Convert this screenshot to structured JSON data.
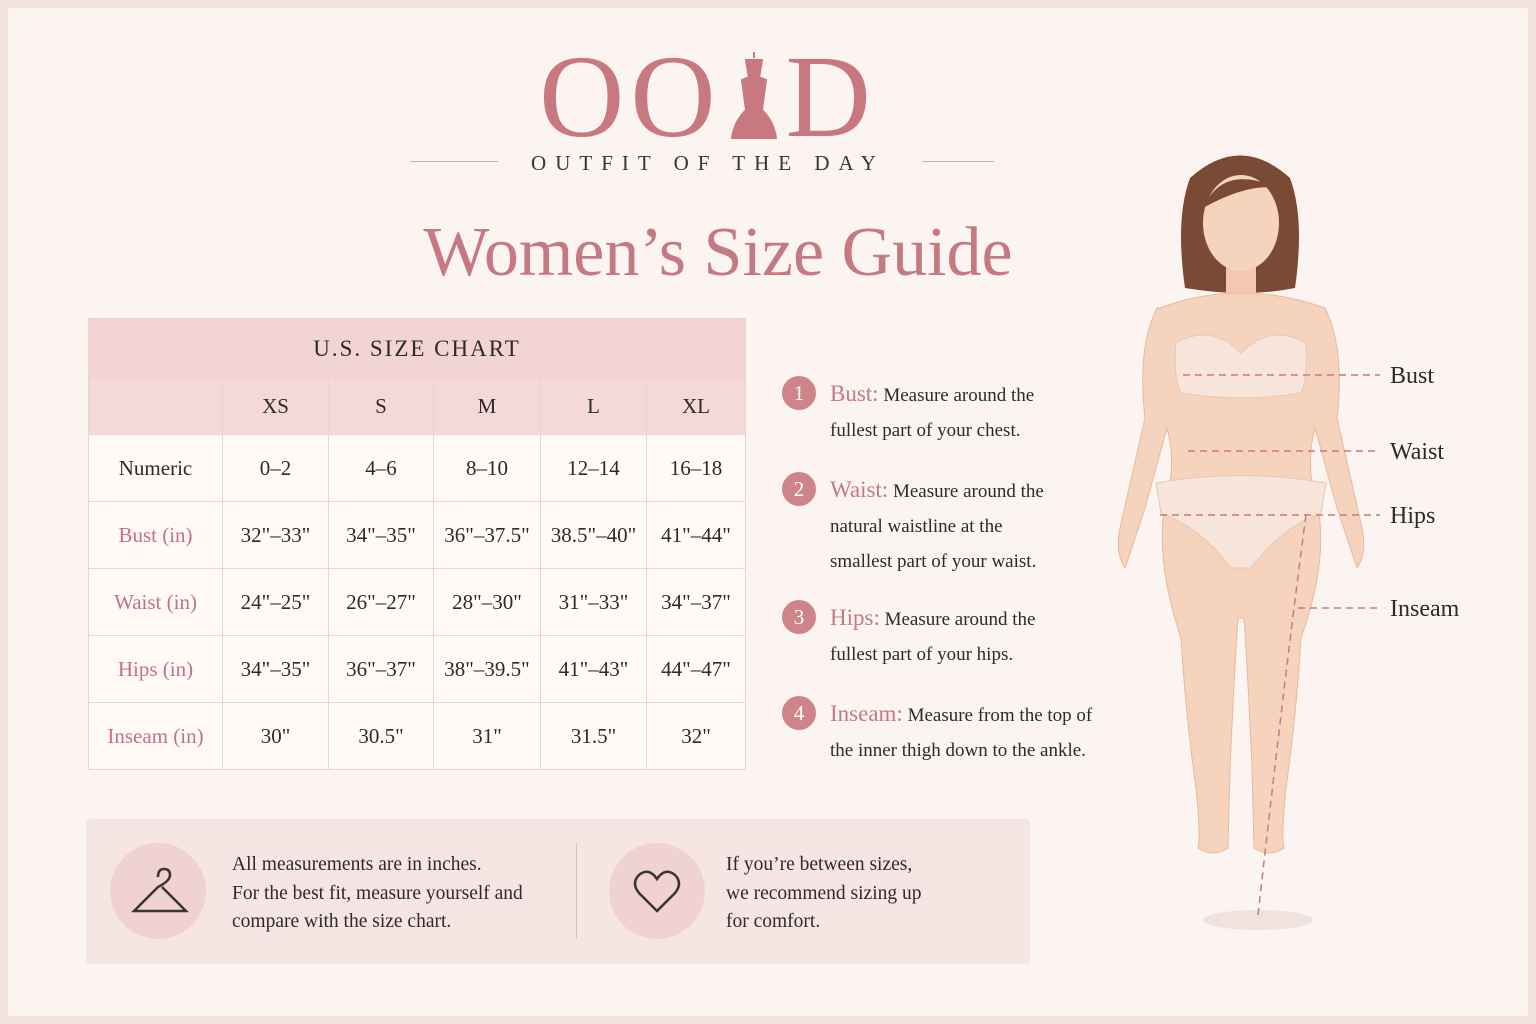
{
  "logo": {
    "left": "OO",
    "right": "D",
    "tagline": "OUTFIT OF THE DAY"
  },
  "title": "Women’s Size Guide",
  "table": {
    "title": "U.S. SIZE CHART",
    "columns": [
      "XS",
      "S",
      "M",
      "L",
      "XL"
    ],
    "rows": [
      {
        "label": "Numeric",
        "cells": [
          "0–2",
          "4–6",
          "8–10",
          "12–14",
          "16–18"
        ]
      },
      {
        "label": "Bust (in)",
        "cells": [
          "32\"–33\"",
          "34\"–35\"",
          "36\"–37.5\"",
          "38.5\"–40\"",
          "41\"–44\""
        ]
      },
      {
        "label": "Waist (in)",
        "cells": [
          "24\"–25\"",
          "26\"–27\"",
          "28\"–30\"",
          "31\"–33\"",
          "34\"–37\""
        ]
      },
      {
        "label": "Hips (in)",
        "cells": [
          "34\"–35\"",
          "36\"–37\"",
          "38\"–39.5\"",
          "41\"–43\"",
          "44\"–47\""
        ]
      },
      {
        "label": "Inseam (in)",
        "cells": [
          "30\"",
          "30.5\"",
          "31\"",
          "31.5\"",
          "32\""
        ]
      }
    ]
  },
  "steps": [
    {
      "number": "1",
      "name": "Bust:",
      "lines": [
        "Measure around the",
        "fullest part of your chest."
      ]
    },
    {
      "number": "2",
      "name": "Waist:",
      "lines": [
        "Measure around the",
        "natural waistline at the",
        "smallest part of your waist."
      ]
    },
    {
      "number": "3",
      "name": "Hips:",
      "lines": [
        "Measure around the",
        "fullest part of your hips."
      ]
    },
    {
      "number": "4",
      "name": "Inseam:",
      "lines": [
        "Measure from the top of",
        "the inner thigh down to the ankle."
      ]
    }
  ],
  "figure_labels": [
    "Bust",
    "Waist",
    "Hips",
    "Inseam"
  ],
  "notes": [
    {
      "lines": [
        "All measurements are in inches.",
        "For the best fit, measure yourself and",
        "compare with the size chart."
      ]
    },
    {
      "lines": [
        "If you’re between sizes,",
        "we recommend sizing up",
        "for comfort."
      ]
    }
  ]
}
